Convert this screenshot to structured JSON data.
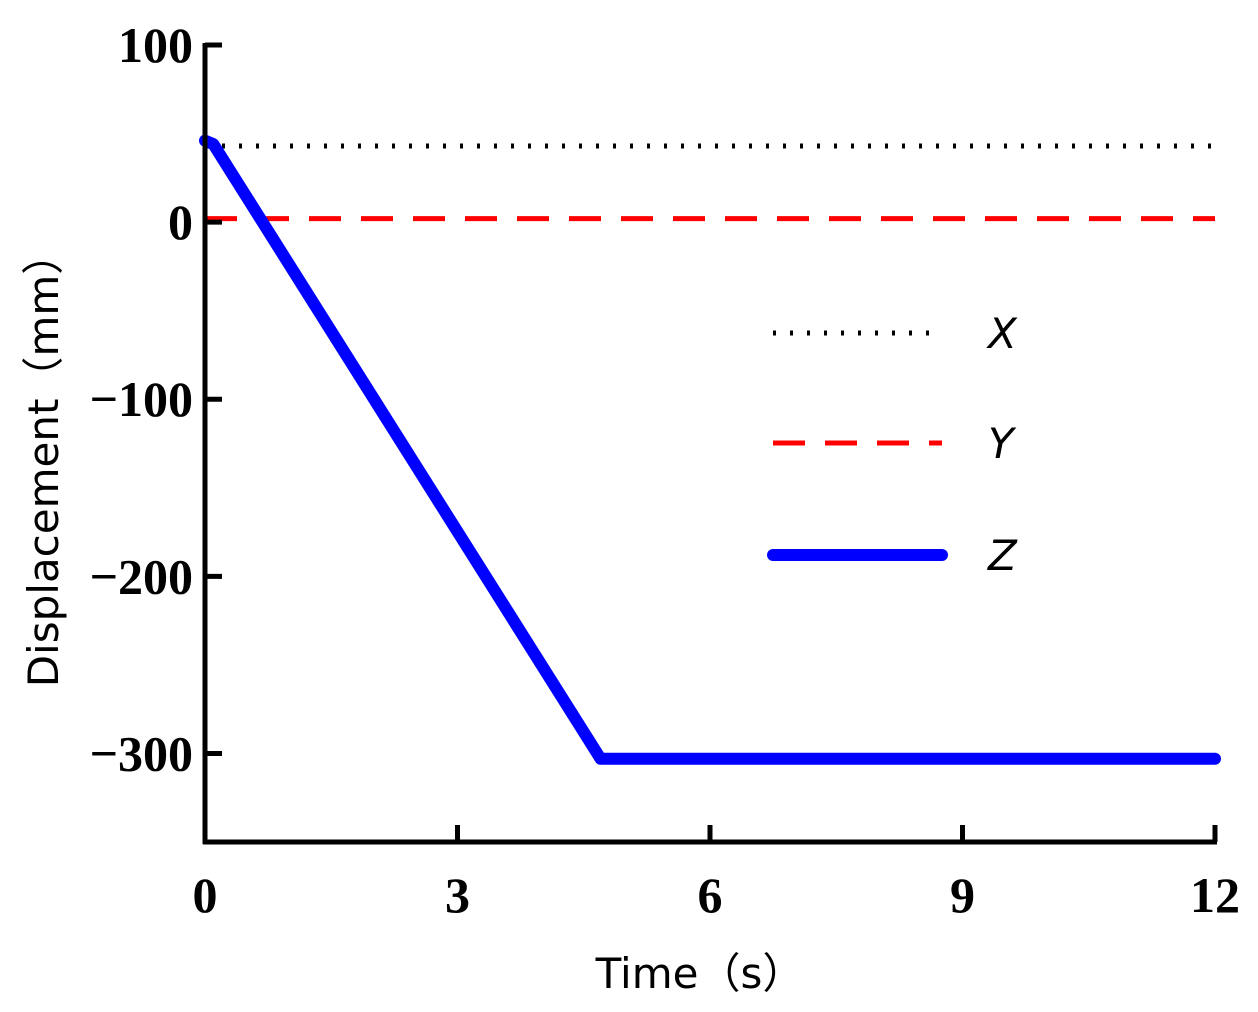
{
  "chart_data": {
    "type": "line",
    "xlabel": "Time（s）",
    "ylabel": "Displacement（mm）",
    "xlim": [
      0,
      12
    ],
    "ylim": [
      -350,
      100
    ],
    "x_ticks": [
      {
        "value": 0,
        "label": "0"
      },
      {
        "value": 3,
        "label": "3"
      },
      {
        "value": 6,
        "label": "6"
      },
      {
        "value": 9,
        "label": "9"
      },
      {
        "value": 12,
        "label": "12"
      }
    ],
    "y_ticks": [
      {
        "value": 100,
        "label": "100"
      },
      {
        "value": 0,
        "label": "0"
      },
      {
        "value": -100,
        "label": "−100"
      },
      {
        "value": -200,
        "label": "−200"
      },
      {
        "value": -300,
        "label": "−300"
      }
    ],
    "grid": false,
    "legend_position": "center-right",
    "series": [
      {
        "name": "X",
        "style": "dotted",
        "color": "#000000",
        "x": [
          0,
          12
        ],
        "y": [
          43,
          43
        ]
      },
      {
        "name": "Y",
        "style": "dashed",
        "color": "#ff0000",
        "x": [
          0,
          12
        ],
        "y": [
          2,
          2
        ]
      },
      {
        "name": "Z",
        "style": "solid",
        "color": "#0000ff",
        "x": [
          0,
          0.1,
          4.7,
          12
        ],
        "y": [
          46,
          44,
          -303,
          -303
        ]
      }
    ]
  }
}
